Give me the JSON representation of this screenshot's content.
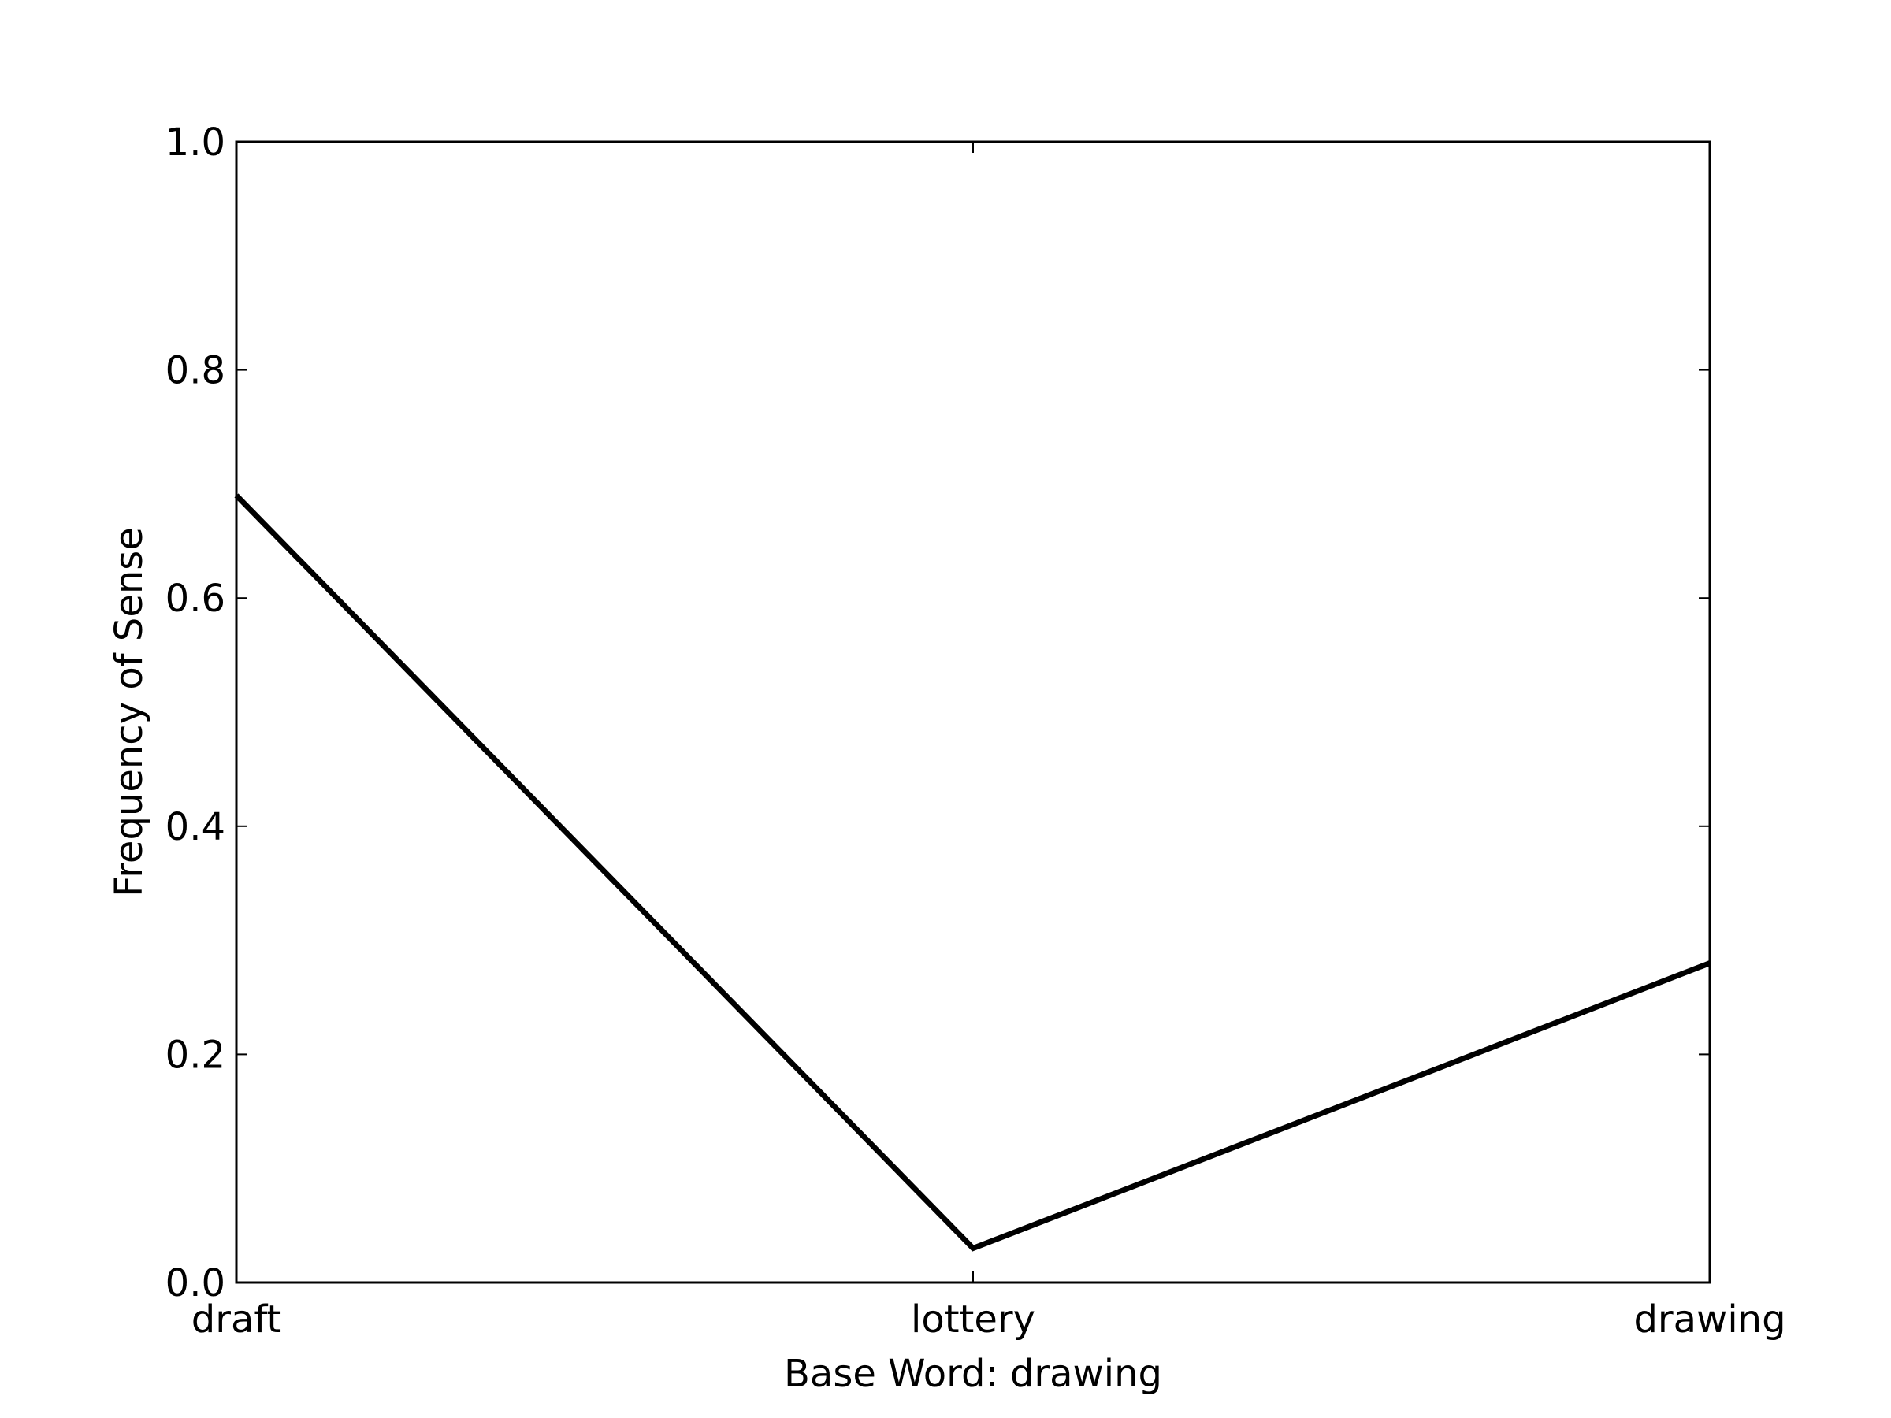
{
  "chart_data": {
    "type": "line",
    "title": "",
    "xlabel": "Base Word: drawing",
    "ylabel": "Frequency of Sense",
    "categories": [
      "draft",
      "lottery",
      "drawing"
    ],
    "series": [
      {
        "values": [
          0.69,
          0.03,
          0.28
        ]
      }
    ],
    "ylim": [
      0.0,
      1.0
    ],
    "yticks": [
      "0.0",
      "0.2",
      "0.4",
      "0.6",
      "0.8",
      "1.0"
    ],
    "grid": false,
    "legend": "none",
    "colors": {
      "line": "#000000",
      "axes": "#000000",
      "background": "#ffffff"
    }
  }
}
